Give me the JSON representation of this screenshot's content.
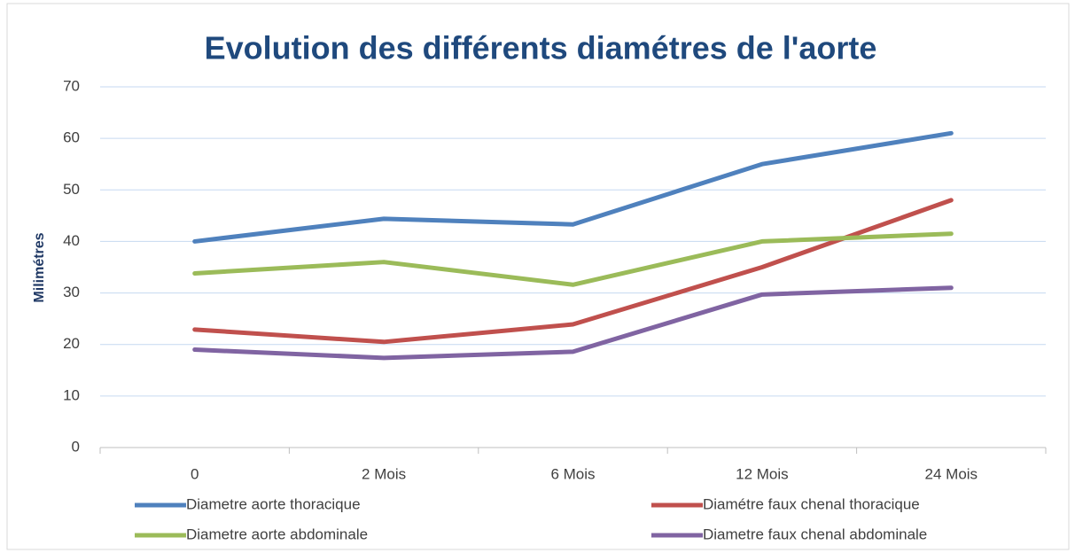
{
  "chart_data": {
    "type": "line",
    "title": "Evolution des différents diamétres de l'aorte",
    "y_label": "Milimétres",
    "categories": [
      "0",
      "2 Mois",
      "6 Mois",
      "12 Mois",
      "24 Mois"
    ],
    "series": [
      {
        "name": "Diametre aorte thoracique",
        "color": "#4f81bd",
        "values": [
          40,
          44.4,
          43.3,
          55,
          61
        ]
      },
      {
        "name": "Diamétre faux chenal thoracique",
        "color": "#c0504d",
        "values": [
          22.9,
          20.5,
          23.9,
          35,
          48
        ]
      },
      {
        "name": "Diametre aorte abdominale",
        "color": "#9bbb59",
        "values": [
          33.8,
          36,
          31.6,
          40,
          41.5
        ]
      },
      {
        "name": "Diametre faux chenal abdominale",
        "color": "#8064a2",
        "values": [
          19,
          17.4,
          18.6,
          29.7,
          31
        ]
      }
    ],
    "ylim": [
      0,
      70
    ],
    "yticks": [
      0,
      10,
      20,
      30,
      40,
      50,
      60,
      70
    ],
    "grid": true,
    "legend": "bottom"
  }
}
